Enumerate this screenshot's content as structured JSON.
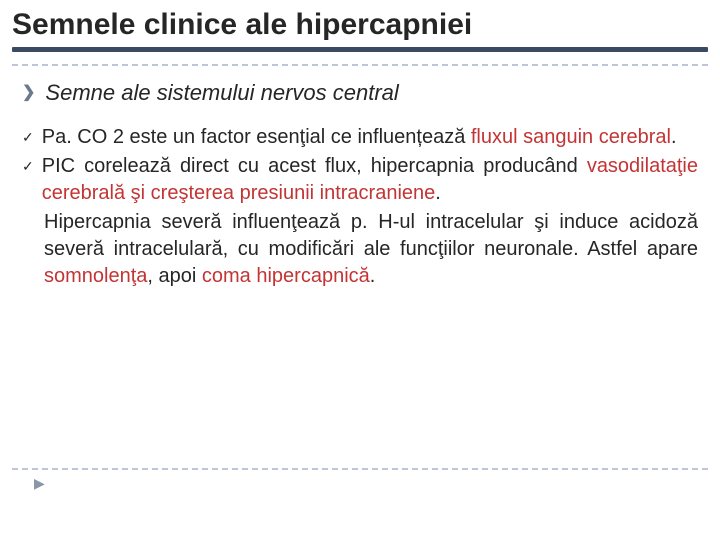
{
  "colors": {
    "text": "#262626",
    "underline": "#3a4a63",
    "dashed": "#bcc6d6",
    "highlight": "#c33434",
    "arrow": "#6a7a8c",
    "footerArrow": "#8a96a8",
    "background": "#ffffff"
  },
  "typography": {
    "title_fontsize": 30,
    "subhead_fontsize": 22,
    "body_fontsize": 20,
    "title_weight": "bold",
    "subhead_style": "italic",
    "body_align": "justify",
    "font_family": "Arial"
  },
  "title": "Semnele clinice ale hipercapniei",
  "subhead": "Semne ale sistemului nervos central",
  "bullets": {
    "arrow": "❯",
    "check": "✓"
  },
  "items": [
    {
      "pre": "Pa. CO 2 este un factor esenţial ce influențează ",
      "hl": "fluxul sanguin cerebral",
      "post": "."
    },
    {
      "pre": "PIC corelează direct cu acest flux, hipercapnia producând ",
      "hl": "vasodilataţie cerebrală şi creşterea presiunii intracraniene",
      "post": "."
    }
  ],
  "continuation": {
    "pre": "Hipercapnia severă influenţează p. H-ul intracelular şi induce acidoză severă intracelulară, cu modificări ale funcţiilor neuronale.  Astfel apare ",
    "hl1": "somnolenţa",
    "mid": ", apoi ",
    "hl2": "coma hipercapnică",
    "post": "."
  },
  "footer_arrow": "▶"
}
